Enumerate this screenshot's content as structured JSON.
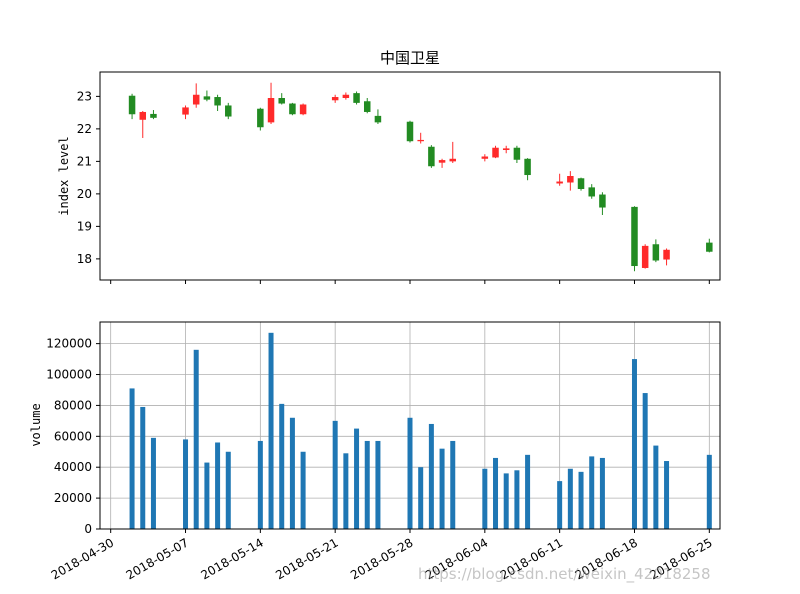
{
  "chart_data": [
    {
      "type": "candlestick",
      "title": "中国卫星",
      "xlabel": "",
      "ylabel": "index level",
      "ylim": [
        17.35,
        23.75
      ],
      "yticks": [
        18,
        19,
        20,
        21,
        22,
        23
      ],
      "xlim": [
        "2018-04-29",
        "2018-06-26"
      ],
      "grid": false,
      "colors": {
        "up": "#ff2a2a",
        "down": "#228b22"
      },
      "candles": [
        {
          "date": "2018-05-02",
          "open": 23.02,
          "high": 23.08,
          "low": 22.3,
          "close": 22.45
        },
        {
          "date": "2018-05-03",
          "open": 22.28,
          "high": 22.55,
          "low": 21.72,
          "close": 22.52
        },
        {
          "date": "2018-05-04",
          "open": 22.46,
          "high": 22.58,
          "low": 22.3,
          "close": 22.34
        },
        {
          "date": "2018-05-07",
          "open": 22.44,
          "high": 22.72,
          "low": 22.3,
          "close": 22.66
        },
        {
          "date": "2018-05-08",
          "open": 22.75,
          "high": 23.4,
          "low": 22.65,
          "close": 23.05
        },
        {
          "date": "2018-05-09",
          "open": 23.0,
          "high": 23.18,
          "low": 22.85,
          "close": 22.9
        },
        {
          "date": "2018-05-10",
          "open": 22.98,
          "high": 23.05,
          "low": 22.55,
          "close": 22.72
        },
        {
          "date": "2018-05-11",
          "open": 22.72,
          "high": 22.8,
          "low": 22.3,
          "close": 22.38
        },
        {
          "date": "2018-05-14",
          "open": 22.62,
          "high": 22.65,
          "low": 21.95,
          "close": 22.05
        },
        {
          "date": "2018-05-15",
          "open": 22.2,
          "high": 23.42,
          "low": 22.15,
          "close": 22.95
        },
        {
          "date": "2018-05-16",
          "open": 22.95,
          "high": 23.1,
          "low": 22.75,
          "close": 22.78
        },
        {
          "date": "2018-05-17",
          "open": 22.78,
          "high": 22.8,
          "low": 22.42,
          "close": 22.45
        },
        {
          "date": "2018-05-18",
          "open": 22.45,
          "high": 22.78,
          "low": 22.42,
          "close": 22.75
        },
        {
          "date": "2018-05-21",
          "open": 22.88,
          "high": 23.05,
          "low": 22.8,
          "close": 22.98
        },
        {
          "date": "2018-05-22",
          "open": 22.95,
          "high": 23.12,
          "low": 22.9,
          "close": 23.05
        },
        {
          "date": "2018-05-23",
          "open": 23.1,
          "high": 23.15,
          "low": 22.75,
          "close": 22.8
        },
        {
          "date": "2018-05-24",
          "open": 22.85,
          "high": 22.95,
          "low": 22.48,
          "close": 22.52
        },
        {
          "date": "2018-05-25",
          "open": 22.4,
          "high": 22.6,
          "low": 22.15,
          "close": 22.2
        },
        {
          "date": "2018-05-28",
          "open": 22.22,
          "high": 22.25,
          "low": 21.58,
          "close": 21.62
        },
        {
          "date": "2018-05-29",
          "open": 21.62,
          "high": 21.88,
          "low": 21.55,
          "close": 21.66
        },
        {
          "date": "2018-05-30",
          "open": 21.45,
          "high": 21.5,
          "low": 20.8,
          "close": 20.85
        },
        {
          "date": "2018-05-31",
          "open": 20.96,
          "high": 21.08,
          "low": 20.8,
          "close": 21.04
        },
        {
          "date": "2018-06-01",
          "open": 21.0,
          "high": 21.6,
          "low": 20.95,
          "close": 21.08
        },
        {
          "date": "2018-06-04",
          "open": 21.08,
          "high": 21.22,
          "low": 21.0,
          "close": 21.15
        },
        {
          "date": "2018-06-05",
          "open": 21.12,
          "high": 21.48,
          "low": 21.1,
          "close": 21.42
        },
        {
          "date": "2018-06-06",
          "open": 21.35,
          "high": 21.48,
          "low": 21.25,
          "close": 21.4
        },
        {
          "date": "2018-06-07",
          "open": 21.42,
          "high": 21.48,
          "low": 20.95,
          "close": 21.05
        },
        {
          "date": "2018-06-08",
          "open": 21.08,
          "high": 21.1,
          "low": 20.42,
          "close": 20.58
        },
        {
          "date": "2018-06-11",
          "open": 20.32,
          "high": 20.62,
          "low": 20.25,
          "close": 20.38
        },
        {
          "date": "2018-06-12",
          "open": 20.35,
          "high": 20.7,
          "low": 20.1,
          "close": 20.55
        },
        {
          "date": "2018-06-13",
          "open": 20.48,
          "high": 20.5,
          "low": 20.1,
          "close": 20.15
        },
        {
          "date": "2018-06-14",
          "open": 20.2,
          "high": 20.3,
          "low": 19.85,
          "close": 19.92
        },
        {
          "date": "2018-06-15",
          "open": 19.98,
          "high": 20.05,
          "low": 19.35,
          "close": 19.58
        },
        {
          "date": "2018-06-18",
          "open": 19.6,
          "high": 19.62,
          "low": 17.62,
          "close": 17.78
        },
        {
          "date": "2018-06-19",
          "open": 17.72,
          "high": 18.45,
          "low": 17.7,
          "close": 18.4
        },
        {
          "date": "2018-06-20",
          "open": 18.45,
          "high": 18.6,
          "low": 17.9,
          "close": 17.95
        },
        {
          "date": "2018-06-21",
          "open": 17.98,
          "high": 18.32,
          "low": 17.8,
          "close": 18.28
        },
        {
          "date": "2018-06-25",
          "open": 18.5,
          "high": 18.62,
          "low": 18.2,
          "close": 18.22
        }
      ]
    },
    {
      "type": "bar",
      "title": "",
      "xlabel": "",
      "ylabel": "volume",
      "ylim": [
        0,
        134000
      ],
      "yticks": [
        0,
        20000,
        40000,
        60000,
        80000,
        100000,
        120000
      ],
      "grid": true,
      "color": "#1f77b4",
      "xticks": [
        "2018-04-30",
        "2018-05-07",
        "2018-05-14",
        "2018-05-21",
        "2018-05-28",
        "2018-06-04",
        "2018-06-11",
        "2018-06-18",
        "2018-06-25"
      ],
      "x": [
        "2018-05-02",
        "2018-05-03",
        "2018-05-04",
        "2018-05-07",
        "2018-05-08",
        "2018-05-09",
        "2018-05-10",
        "2018-05-11",
        "2018-05-14",
        "2018-05-15",
        "2018-05-16",
        "2018-05-17",
        "2018-05-18",
        "2018-05-21",
        "2018-05-22",
        "2018-05-23",
        "2018-05-24",
        "2018-05-25",
        "2018-05-28",
        "2018-05-29",
        "2018-05-30",
        "2018-05-31",
        "2018-06-01",
        "2018-06-04",
        "2018-06-05",
        "2018-06-06",
        "2018-06-07",
        "2018-06-08",
        "2018-06-11",
        "2018-06-12",
        "2018-06-13",
        "2018-06-14",
        "2018-06-15",
        "2018-06-18",
        "2018-06-19",
        "2018-06-20",
        "2018-06-21",
        "2018-06-25"
      ],
      "values": [
        91000,
        79000,
        59000,
        58000,
        116000,
        43000,
        56000,
        50000,
        57000,
        127000,
        81000,
        72000,
        50000,
        70000,
        49000,
        65000,
        57000,
        57000,
        72000,
        40000,
        68000,
        52000,
        57000,
        39000,
        46000,
        36000,
        38000,
        48000,
        31000,
        39000,
        37000,
        47000,
        46000,
        110000,
        88000,
        54000,
        44000,
        48000
      ]
    }
  ],
  "watermark": "https://blog.csdn.net/weixin_42018258"
}
